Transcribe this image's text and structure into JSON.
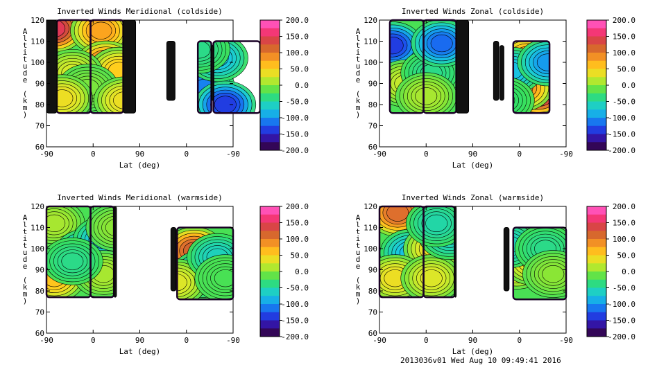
{
  "footer": "2013036v01 Wed Aug 10 09:49:41 2016",
  "chart_data": [
    {
      "type": "heatmap",
      "title": "Inverted Winds Meridional (coldside)",
      "xlabel": "Lat (deg)",
      "ylabel": "Altitude (km)",
      "xticks": [
        "-90",
        "0",
        "90",
        "0",
        "-90"
      ],
      "yticks": [
        60,
        70,
        80,
        90,
        100,
        110,
        120
      ],
      "ylim": [
        60,
        120
      ],
      "colorbar": {
        "min": -200.0,
        "max": 200.0,
        "ticks": [
          "200.0",
          "150.0",
          "100.0",
          "50.0",
          "0.0",
          "-50.0",
          "-100.0",
          "-150.0",
          "-200.0"
        ]
      },
      "blobs": [
        {
          "x": -75,
          "y": 116,
          "value": 150
        },
        {
          "x": 15,
          "y": 115,
          "value": 80
        },
        {
          "x": 25,
          "y": 99,
          "value": 110
        },
        {
          "x": 50,
          "y": 96,
          "value": 55
        },
        {
          "x": -40,
          "y": 95,
          "value": 25
        },
        {
          "x": -10,
          "y": 88,
          "value": -5
        },
        {
          "x": 60,
          "y": 82,
          "value": 40
        },
        {
          "x": -60,
          "y": 83,
          "value": 40
        },
        {
          "x": 180,
          "y": 97,
          "value": 55
        },
        {
          "x": 150,
          "y": 96,
          "value": 50
        },
        {
          "x": 215,
          "y": 88,
          "value": -110
        },
        {
          "x": 240,
          "y": 102,
          "value": -80
        },
        {
          "x": 255,
          "y": 80,
          "value": -140
        },
        {
          "x": 205,
          "y": 106,
          "value": -40
        }
      ]
    },
    {
      "type": "heatmap",
      "title": "Inverted Winds Zonal (coldside)",
      "xlabel": "Lat (deg)",
      "ylabel": "Altitude (km)",
      "xticks": [
        "-90",
        "0",
        "90",
        "0",
        "-90"
      ],
      "yticks": [
        60,
        70,
        80,
        90,
        100,
        110,
        120
      ],
      "ylim": [
        60,
        120
      ],
      "colorbar": {
        "min": -200.0,
        "max": 200.0,
        "ticks": [
          "200.0",
          "150.0",
          "100.0",
          "50.0",
          "0.0",
          "-50.0",
          "-100.0",
          "-150.0",
          "-200.0"
        ]
      },
      "blobs": [
        {
          "x": -65,
          "y": 108,
          "value": -140
        },
        {
          "x": 55,
          "y": 100,
          "value": 110
        },
        {
          "x": -40,
          "y": 90,
          "value": 20
        },
        {
          "x": 10,
          "y": 95,
          "value": -40
        },
        {
          "x": 0,
          "y": 84,
          "value": 10
        },
        {
          "x": 30,
          "y": 109,
          "value": -120
        },
        {
          "x": 215,
          "y": 86,
          "value": 175
        },
        {
          "x": 185,
          "y": 88,
          "value": 90
        },
        {
          "x": 195,
          "y": 102,
          "value": 80
        },
        {
          "x": 165,
          "y": 96,
          "value": -80
        },
        {
          "x": 235,
          "y": 100,
          "value": -100
        },
        {
          "x": 150,
          "y": 82,
          "value": -30
        }
      ]
    },
    {
      "type": "heatmap",
      "title": "Inverted Winds Meridional (warmside)",
      "xlabel": "Lat (deg)",
      "ylabel": "Altitude (km)",
      "xticks": [
        "-90",
        "0",
        "90",
        "0",
        "-90"
      ],
      "yticks": [
        60,
        70,
        80,
        90,
        100,
        110,
        120
      ],
      "ylim": [
        60,
        120
      ],
      "colorbar": {
        "min": -200.0,
        "max": 200.0,
        "ticks": [
          "200.0",
          "150.0",
          "100.0",
          "50.0",
          "0.0",
          "-50.0",
          "-100.0",
          "-150.0",
          "-200.0"
        ]
      },
      "blobs": [
        {
          "x": -75,
          "y": 86,
          "value": 60
        },
        {
          "x": -75,
          "y": 112,
          "value": 10
        },
        {
          "x": -15,
          "y": 98,
          "value": -100
        },
        {
          "x": 20,
          "y": 104,
          "value": -80
        },
        {
          "x": 20,
          "y": 88,
          "value": 10
        },
        {
          "x": 45,
          "y": 110,
          "value": 0
        },
        {
          "x": -40,
          "y": 94,
          "value": -40
        },
        {
          "x": 195,
          "y": 99,
          "value": 120
        },
        {
          "x": 210,
          "y": 88,
          "value": -90
        },
        {
          "x": 160,
          "y": 84,
          "value": 30
        },
        {
          "x": 240,
          "y": 96,
          "value": -60
        },
        {
          "x": 255,
          "y": 86,
          "value": -20
        }
      ]
    },
    {
      "type": "heatmap",
      "title": "Inverted Winds Zonal (warmside)",
      "xlabel": "Lat (deg)",
      "ylabel": "Altitude (km)",
      "xticks": [
        "-90",
        "0",
        "90",
        "0",
        "-90"
      ],
      "yticks": [
        60,
        70,
        80,
        90,
        100,
        110,
        120
      ],
      "ylim": [
        60,
        120
      ],
      "colorbar": {
        "min": -200.0,
        "max": 200.0,
        "ticks": [
          "200.0",
          "150.0",
          "100.0",
          "50.0",
          "0.0",
          "-50.0",
          "-100.0",
          "-150.0",
          "-200.0"
        ]
      },
      "blobs": [
        {
          "x": -55,
          "y": 117,
          "value": 110
        },
        {
          "x": -30,
          "y": 98,
          "value": -80
        },
        {
          "x": 15,
          "y": 100,
          "value": 40
        },
        {
          "x": -60,
          "y": 86,
          "value": 40
        },
        {
          "x": 10,
          "y": 86,
          "value": 30
        },
        {
          "x": 45,
          "y": 106,
          "value": -60
        },
        {
          "x": 20,
          "y": 112,
          "value": -50
        },
        {
          "x": 175,
          "y": 92,
          "value": 50
        },
        {
          "x": 205,
          "y": 94,
          "value": 40
        },
        {
          "x": 160,
          "y": 102,
          "value": -60
        },
        {
          "x": 230,
          "y": 100,
          "value": -40
        },
        {
          "x": 245,
          "y": 88,
          "value": 0
        }
      ]
    }
  ]
}
